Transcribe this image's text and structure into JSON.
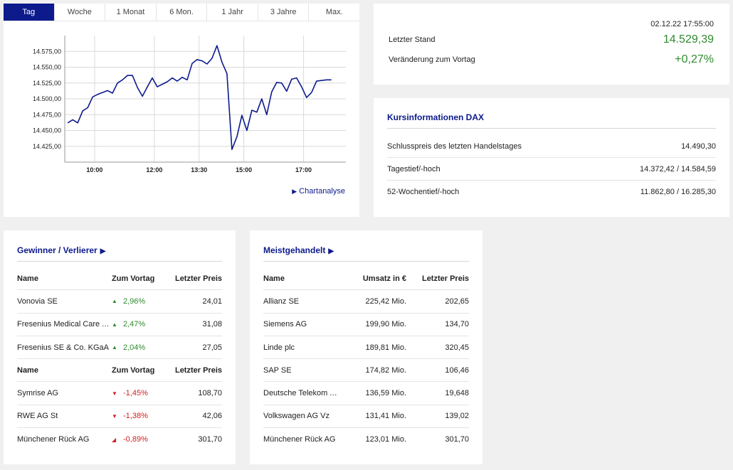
{
  "tabs": [
    "Tag",
    "Woche",
    "1 Monat",
    "6 Mon.",
    "1 Jahr",
    "3 Jahre",
    "Max."
  ],
  "active_tab": 0,
  "chart_link": "Chartanalyse",
  "chart_data": {
    "type": "line",
    "x_ticks": [
      "10:00",
      "12:00",
      "13:30",
      "15:00",
      "17:00"
    ],
    "x_tick_minutes": [
      600,
      720,
      810,
      900,
      1020
    ],
    "x_range_minutes": [
      540,
      1105
    ],
    "y_ticks": [
      "14.425,00",
      "14.450,00",
      "14.475,00",
      "14.500,00",
      "14.525,00",
      "14.550,00",
      "14.575,00"
    ],
    "y_tick_values": [
      14425,
      14450,
      14475,
      14500,
      14525,
      14550,
      14575
    ],
    "ylim": [
      14400,
      14600
    ],
    "grid": true,
    "color": "#0c1a8c",
    "x_minutes": [
      546,
      556,
      566,
      576,
      586,
      596,
      606,
      616,
      626,
      636,
      646,
      656,
      666,
      676,
      686,
      696,
      706,
      716,
      726,
      736,
      746,
      756,
      766,
      776,
      786,
      796,
      806,
      816,
      826,
      836,
      846,
      856,
      866,
      876,
      886,
      896,
      906,
      916,
      926,
      936,
      946,
      956,
      966,
      976,
      986,
      996,
      1006,
      1016,
      1026,
      1036,
      1046,
      1056,
      1066,
      1076
    ],
    "values": [
      14462,
      14467,
      14462,
      14481,
      14486,
      14503,
      14507,
      14510,
      14513,
      14509,
      14525,
      14530,
      14537,
      14537,
      14518,
      14504,
      14519,
      14533,
      14519,
      14523,
      14527,
      14533,
      14528,
      14534,
      14530,
      14556,
      14562,
      14560,
      14555,
      14564,
      14584,
      14558,
      14540,
      14420,
      14440,
      14474,
      14450,
      14482,
      14479,
      14500,
      14475,
      14511,
      14526,
      14525,
      14512,
      14531,
      14533,
      14519,
      14502,
      14510,
      14528,
      14529,
      14530,
      14530
    ]
  },
  "quote": {
    "time": "02.12.22 17:55:00",
    "rows": [
      {
        "label": "Letzter Stand",
        "value": "14.529,39"
      },
      {
        "label": "Veränderung zum Vortag",
        "value": "+0,27%"
      }
    ]
  },
  "info": {
    "title": "Kursinformationen DAX",
    "rows": [
      {
        "label": "Schlusspreis des letzten Handelstages",
        "value": "14.490,30"
      },
      {
        "label": "Tagestief/-hoch",
        "value": "14.372,42 / 14.584,59"
      },
      {
        "label": "52-Wochentief/-hoch",
        "value": "11.862,80 / 16.285,30"
      }
    ]
  },
  "gainers": {
    "title": "Gewinner / Verlierer",
    "headers": [
      "Name",
      "Zum Vortag",
      "Letzter Preis"
    ],
    "gain": [
      {
        "name": "Vonovia SE",
        "change": "2,96%",
        "price": "24,01"
      },
      {
        "name": "Fresenius Medical Care AG & Co. KGaA",
        "change": "2,47%",
        "price": "31,08"
      },
      {
        "name": "Fresenius SE & Co. KGaA",
        "change": "2,04%",
        "price": "27,05"
      }
    ],
    "loss": [
      {
        "name": "Symrise AG",
        "change": "-1,45%",
        "price": "108,70"
      },
      {
        "name": "RWE AG St",
        "change": "-1,38%",
        "price": "42,06"
      },
      {
        "name": "Münchener Rück AG",
        "change": "-0,89%",
        "price": "301,70"
      }
    ]
  },
  "most_traded": {
    "title": "Meistgehandelt",
    "headers": [
      "Name",
      "Umsatz in €",
      "Letzter Preis"
    ],
    "rows": [
      {
        "name": "Allianz SE",
        "volume": "225,42 Mio.",
        "price": "202,65"
      },
      {
        "name": "Siemens AG",
        "volume": "199,90 Mio.",
        "price": "134,70"
      },
      {
        "name": "Linde plc",
        "volume": "189,81 Mio.",
        "price": "320,45"
      },
      {
        "name": "SAP SE",
        "volume": "174,82 Mio.",
        "price": "106,46"
      },
      {
        "name": "Deutsche Telekom AG",
        "volume": "136,59 Mio.",
        "price": "19,648"
      },
      {
        "name": "Volkswagen AG Vz",
        "volume": "131,41 Mio.",
        "price": "139,02"
      },
      {
        "name": "Münchener Rück AG",
        "volume": "123,01 Mio.",
        "price": "301,70"
      }
    ]
  }
}
